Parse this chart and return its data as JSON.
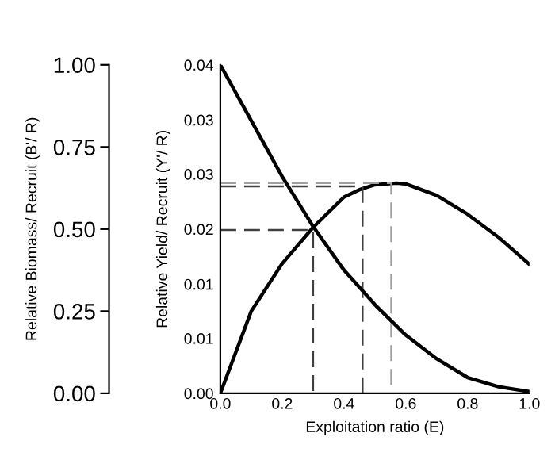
{
  "chart_data": {
    "type": "line",
    "xlabel": "Exploitation ratio (E)",
    "ylabel": "Relative Yield/ Recruit (Y'/ R)",
    "y2label": "Relative Biomass/ Recruit (B'/ R)",
    "xlim": [
      0,
      1
    ],
    "xticks": [
      {
        "value": 0,
        "label": "0.0"
      },
      {
        "value": 0.2,
        "label": "0.2"
      },
      {
        "value": 0.4,
        "label": "0.4"
      },
      {
        "value": 0.6,
        "label": "0.6"
      },
      {
        "value": 0.8,
        "label": "0.8"
      },
      {
        "value": 1,
        "label": "1.0"
      }
    ],
    "ylim": [
      0,
      0.04
    ],
    "yticks": [
      {
        "value": 0,
        "label": "0.00"
      },
      {
        "value": 0.0067,
        "label": "0.01"
      },
      {
        "value": 0.0133,
        "label": "0.01"
      },
      {
        "value": 0.02,
        "label": "0.02"
      },
      {
        "value": 0.0267,
        "label": "0.03"
      },
      {
        "value": 0.0333,
        "label": "0.03"
      },
      {
        "value": 0.04,
        "label": "0.04"
      }
    ],
    "y2lim": [
      0,
      1
    ],
    "y2ticks": [
      {
        "value": 0,
        "label": "0.00"
      },
      {
        "value": 0.25,
        "label": "0.25"
      },
      {
        "value": 0.5,
        "label": "0.50"
      },
      {
        "value": 0.75,
        "label": "0.75"
      },
      {
        "value": 1,
        "label": "1.00"
      }
    ],
    "marker": "none",
    "series": [
      {
        "color": "#000000",
        "x": [
          0,
          0.1,
          0.2,
          0.3,
          0.4,
          0.45,
          0.5,
          0.57,
          0.6,
          0.7,
          0.8,
          0.9,
          1.0
        ],
        "values": [
          0,
          0.01,
          0.0158,
          0.0202,
          0.0239,
          0.0248,
          0.0254,
          0.0256,
          0.0255,
          0.0241,
          0.0218,
          0.019,
          0.0157
        ],
        "line_style": "solid"
      },
      {
        "color": "#000000",
        "axis": "y2",
        "x": [
          0,
          0.1,
          0.2,
          0.3,
          0.4,
          0.5,
          0.6,
          0.7,
          0.8,
          0.9,
          1.0
        ],
        "values": [
          1,
          0.83,
          0.66,
          0.508,
          0.375,
          0.27,
          0.177,
          0.105,
          0.048,
          0.02,
          0.005
        ],
        "line_style": "solid"
      },
      {
        "color": "#404040",
        "x": [
          0,
          0.3,
          0.3
        ],
        "values": [
          0.0199,
          0.0199,
          0
        ],
        "line_style": "dashed"
      },
      {
        "color": "#404040",
        "x": [
          0,
          0.46,
          0.46
        ],
        "values": [
          0.0252,
          0.0252,
          0
        ],
        "line_style": "dashed"
      },
      {
        "color": "#a0a0a0",
        "x": [
          0,
          0.553,
          0.553
        ],
        "values": [
          0.0256,
          0.0256,
          0
        ],
        "line_style": "dashed"
      }
    ]
  }
}
